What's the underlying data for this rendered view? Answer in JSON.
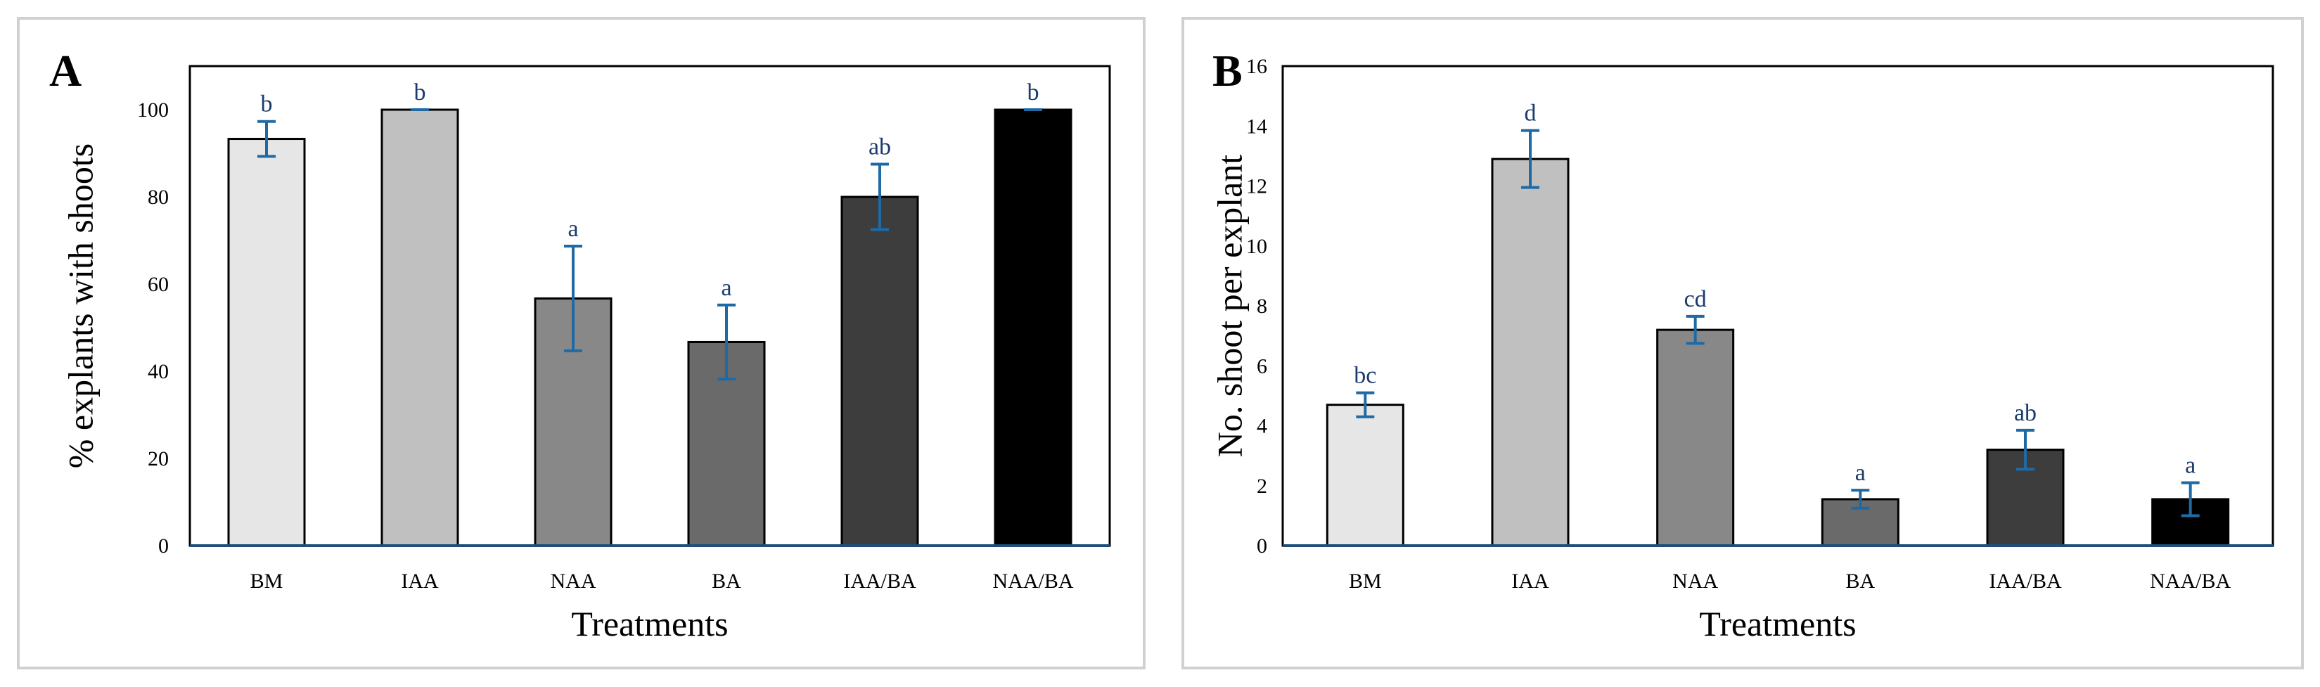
{
  "figure": {
    "colors": {
      "axis": "#1f4e79",
      "errorbar": "#1f6aa5",
      "sig_text": "#1a3b6b"
    }
  },
  "chart_data": [
    {
      "type": "bar",
      "panel_label": "A",
      "title": "",
      "xlabel": "Treatments",
      "ylabel": "% explants with shoots",
      "ylim": [
        0,
        110
      ],
      "yticks": [
        0,
        20,
        40,
        60,
        80,
        100
      ],
      "categories": [
        "BM",
        "IAA",
        "NAA",
        "BA",
        "IAA/BA",
        "NAA/BA"
      ],
      "values": [
        93.3,
        100,
        56.7,
        46.7,
        80,
        100
      ],
      "errors": [
        4,
        0,
        12,
        8.5,
        7.5,
        0
      ],
      "significance": [
        "b",
        "b",
        "a",
        "a",
        "ab",
        "b"
      ],
      "bar_colors": [
        "#e6e6e6",
        "#c0c0c0",
        "#888888",
        "#6a6a6a",
        "#3d3d3d",
        "#000000"
      ]
    },
    {
      "type": "bar",
      "panel_label": "B",
      "title": "",
      "xlabel": "Treatments",
      "ylabel": "No. shoot per explant",
      "ylim": [
        0,
        16
      ],
      "yticks": [
        0,
        2,
        4,
        6,
        8,
        10,
        12,
        14,
        16
      ],
      "categories": [
        "BM",
        "IAA",
        "NAA",
        "BA",
        "IAA/BA",
        "NAA/BA"
      ],
      "values": [
        4.7,
        12.9,
        7.2,
        1.55,
        3.2,
        1.55
      ],
      "errors": [
        0.4,
        0.95,
        0.45,
        0.3,
        0.65,
        0.55
      ],
      "significance": [
        "bc",
        "d",
        "cd",
        "a",
        "ab",
        "a"
      ],
      "bar_colors": [
        "#e6e6e6",
        "#c0c0c0",
        "#888888",
        "#6a6a6a",
        "#3d3d3d",
        "#000000"
      ]
    }
  ]
}
